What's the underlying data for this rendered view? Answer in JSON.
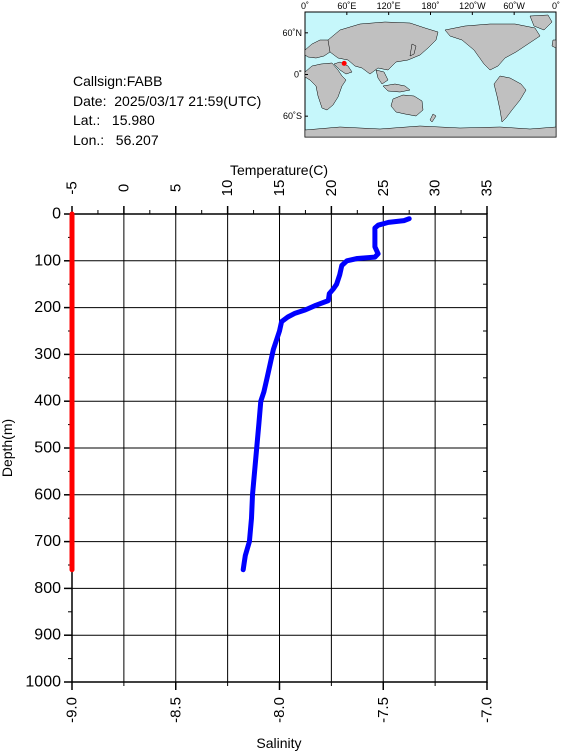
{
  "info": {
    "callsign": "Callsign:FABB",
    "date": "Date:  2025/03/17 21:59(UTC)",
    "lat": "Lat.:   15.980",
    "lon": "Lon.:   56.207"
  },
  "map": {
    "top_labels": [
      "0˚",
      "60˚E",
      "120˚E",
      "180˚",
      "120˚W",
      "60˚W",
      "0˚"
    ],
    "lat_labels": [
      "60˚N",
      "0˚",
      "60˚S"
    ],
    "station": {
      "lon": 56.207,
      "lat": 15.98
    },
    "colors": {
      "ocean": "#c6f7fb",
      "land": "#c0c0c0",
      "marker": "#ff0000"
    }
  },
  "chart_data": {
    "type": "line",
    "top_axis": {
      "label": "Temperature(C)",
      "range": [
        -5,
        35
      ],
      "ticks": [
        "-5",
        "0",
        "5",
        "10",
        "15",
        "20",
        "25",
        "30",
        "35"
      ]
    },
    "bottom_axis": {
      "label": "Salinity",
      "range": [
        -9.0,
        -7.0
      ],
      "ticks": [
        "-9.0",
        "-8.5",
        "-8.0",
        "-7.5",
        "-7.0"
      ]
    },
    "y_axis": {
      "label": "Depth(m)",
      "range": [
        0,
        1000
      ],
      "inverted": true,
      "ticks": [
        "0",
        "100",
        "200",
        "300",
        "400",
        "500",
        "600",
        "700",
        "800",
        "900",
        "1000"
      ]
    },
    "grid": true,
    "series": [
      {
        "axis": "temperature",
        "color": "#0000ff",
        "points": [
          [
            27.5,
            10
          ],
          [
            27.0,
            14
          ],
          [
            25.5,
            18
          ],
          [
            24.5,
            24
          ],
          [
            24.2,
            30
          ],
          [
            24.2,
            50
          ],
          [
            24.2,
            70
          ],
          [
            24.5,
            85
          ],
          [
            24.2,
            92
          ],
          [
            22.5,
            95
          ],
          [
            21.5,
            100
          ],
          [
            21.0,
            110
          ],
          [
            20.8,
            130
          ],
          [
            20.5,
            150
          ],
          [
            20.2,
            160
          ],
          [
            19.8,
            170
          ],
          [
            19.7,
            185
          ],
          [
            18.5,
            195
          ],
          [
            17.5,
            205
          ],
          [
            16.5,
            212
          ],
          [
            15.8,
            220
          ],
          [
            15.2,
            230
          ],
          [
            15.0,
            250
          ],
          [
            14.7,
            270
          ],
          [
            14.4,
            290
          ],
          [
            14.1,
            320
          ],
          [
            13.8,
            350
          ],
          [
            13.5,
            380
          ],
          [
            13.2,
            400
          ],
          [
            13.0,
            450
          ],
          [
            12.8,
            500
          ],
          [
            12.6,
            550
          ],
          [
            12.4,
            600
          ],
          [
            12.3,
            650
          ],
          [
            12.1,
            700
          ],
          [
            11.7,
            730
          ],
          [
            11.6,
            745
          ],
          [
            11.5,
            760
          ]
        ]
      },
      {
        "axis": "salinity",
        "color": "#ff0000",
        "points": [
          [
            -9.0,
            0
          ],
          [
            -9.0,
            760
          ]
        ]
      }
    ]
  }
}
